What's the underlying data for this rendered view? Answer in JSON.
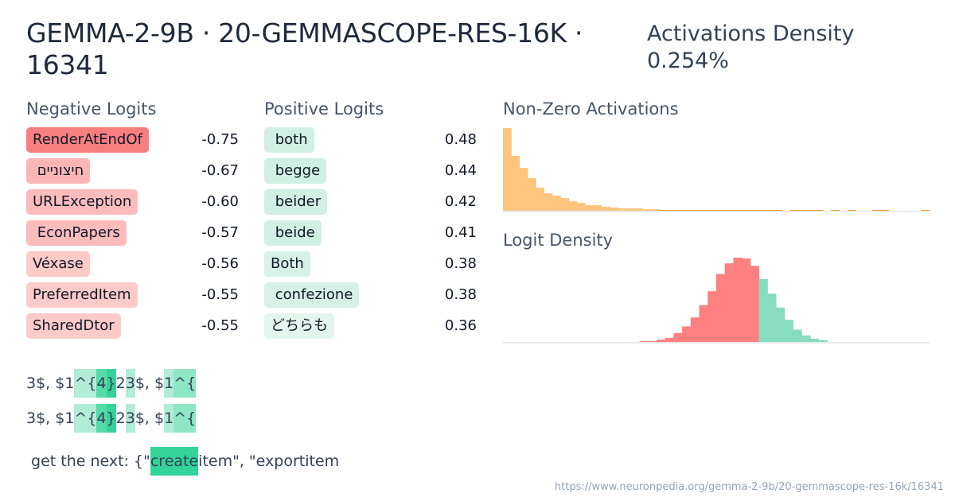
{
  "header": {
    "title": "GEMMA-2-9B · 20-GEMMASCOPE-RES-16K · 16341",
    "density_label": "Activations Density",
    "density_value": "0.254%"
  },
  "negative": {
    "label": "Negative Logits",
    "items": [
      {
        "token": "RenderAtEndOf",
        "value": "-0.75",
        "color": "#f87f7f"
      },
      {
        "token": " חיצוניים",
        "value": "-0.67",
        "color": "#fcb6b6"
      },
      {
        "token": "URLException",
        "value": "-0.60",
        "color": "#fcbcbc"
      },
      {
        "token": " EconPapers",
        "value": "-0.57",
        "color": "#fcbcbc"
      },
      {
        "token": "Véxase",
        "value": "-0.56",
        "color": "#fdcaca"
      },
      {
        "token": "PreferredItem",
        "value": "-0.55",
        "color": "#fdcaca"
      },
      {
        "token": "SharedDtor",
        "value": "-0.55",
        "color": "#fdcaca"
      }
    ]
  },
  "positive": {
    "label": "Positive Logits",
    "items": [
      {
        "token": " both",
        "value": "0.48",
        "color": "#d1f0e4"
      },
      {
        "token": " begge",
        "value": "0.44",
        "color": "#d1f0e4"
      },
      {
        "token": " beider",
        "value": "0.42",
        "color": "#d1f0e4"
      },
      {
        "token": " beide",
        "value": "0.41",
        "color": "#d1f0e4"
      },
      {
        "token": "Both",
        "value": "0.38",
        "color": "#d6f2e7"
      },
      {
        "token": " confezione",
        "value": "0.38",
        "color": "#d6f2e7"
      },
      {
        "token": "どちらも",
        "value": "0.36",
        "color": "#e3f6ee"
      }
    ]
  },
  "activations": {
    "label": "Non-Zero Activations",
    "color": "#fdc57e",
    "chart_data": {
      "type": "bar",
      "values": [
        104,
        69,
        54,
        41,
        29,
        22,
        19,
        16,
        12,
        10,
        7,
        7,
        5,
        4,
        3,
        3,
        3,
        2,
        2,
        1,
        1,
        1,
        1,
        1,
        1,
        1,
        1,
        1,
        1,
        1,
        1,
        1,
        1,
        1,
        0,
        1,
        1,
        1,
        1,
        0,
        1,
        0,
        1,
        0,
        0,
        1,
        1,
        0,
        0,
        0,
        0,
        1
      ]
    }
  },
  "logits": {
    "label": "Logit Density",
    "neg_color": "#fe8080",
    "pos_color": "#88dcc0",
    "chart_data": {
      "type": "bar",
      "split_index": 30,
      "values": [
        0,
        0,
        0,
        0,
        0,
        0,
        0,
        0,
        0,
        0,
        0,
        0,
        0,
        0,
        0,
        0,
        1,
        1,
        3,
        5,
        11,
        19,
        30,
        45,
        62,
        83,
        96,
        103,
        102,
        93,
        77,
        59,
        42,
        27,
        15,
        8,
        4,
        2,
        0,
        0,
        0,
        0,
        0,
        0,
        0,
        0,
        0,
        0,
        0,
        0
      ]
    }
  },
  "examples": [
    [
      {
        "t": "3$, $1"
      },
      {
        "t": "^{",
        "c": "#b1ecd6"
      },
      {
        "t": "4",
        "c": "#55dba9"
      },
      {
        "t": "}",
        "c": "#35d399"
      },
      {
        "t": "2"
      },
      {
        "t": "3",
        "c": "#b1ecd6"
      },
      {
        "t": "$, $"
      },
      {
        "t": "1",
        "c": "#b1ecd6"
      },
      {
        "t": "^{",
        "c": "#8ee6c5"
      }
    ],
    [
      {
        "t": "3$, $1"
      },
      {
        "t": "^{",
        "c": "#b1ecd6"
      },
      {
        "t": "4",
        "c": "#55dba9"
      },
      {
        "t": "}",
        "c": "#35d399"
      },
      {
        "t": "2"
      },
      {
        "t": "3",
        "c": "#b1ecd6"
      },
      {
        "t": "$, $"
      },
      {
        "t": "1",
        "c": "#b1ecd6"
      },
      {
        "t": "^{",
        "c": "#8ee6c5"
      }
    ],
    [
      {
        "t": " get the next: {\""
      },
      {
        "t": "create",
        "c": "#34d399"
      },
      {
        "t": "item\", \"exportitem"
      }
    ]
  ],
  "footer": {
    "url": "https://www.neuronpedia.org/gemma-2-9b/20-gemmascope-res-16k/16341"
  }
}
